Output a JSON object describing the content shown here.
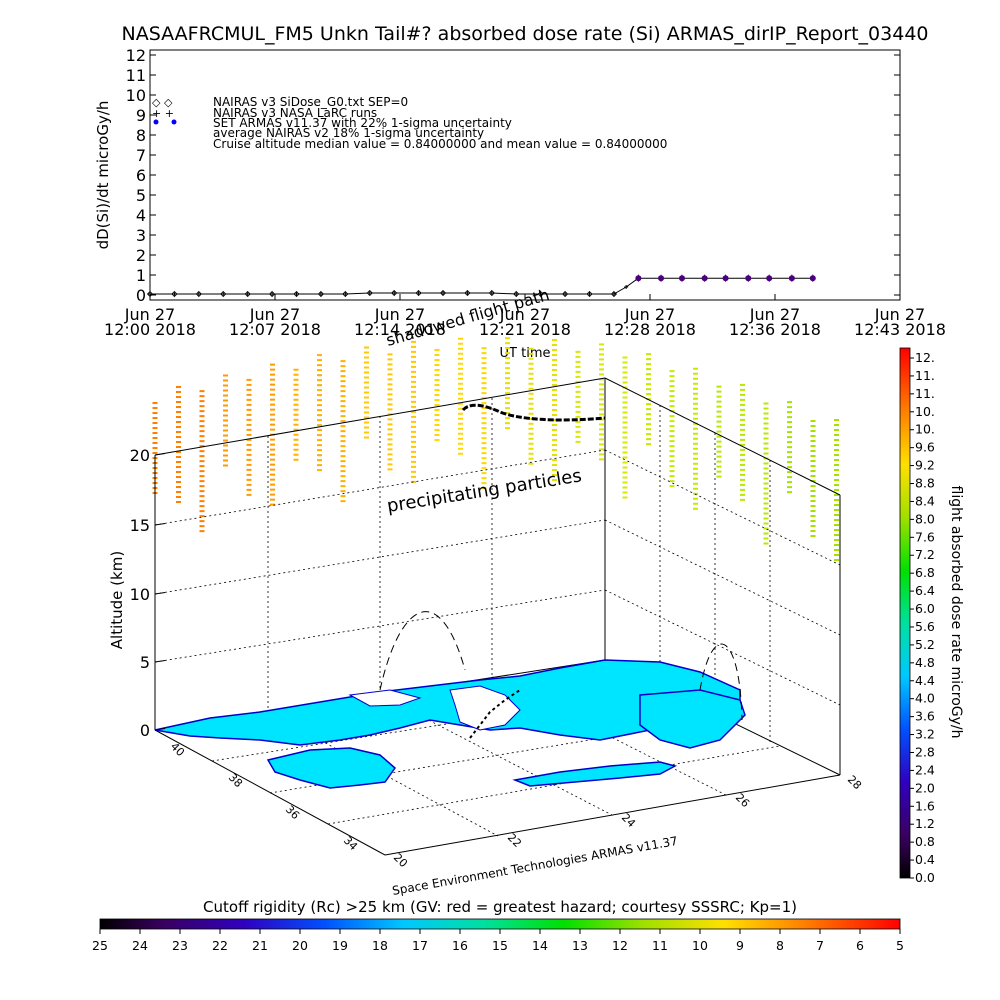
{
  "title": "NASAAFRCMUL_FM5 Unkn Tail#? absorbed dose rate (Si) ARMAS_dirIP_Report_03440",
  "top_chart": {
    "ylabel": "dD(Si)/dt microGy/h",
    "xlabel": "UT time",
    "yticks": [
      "0",
      "1",
      "2",
      "3",
      "4",
      "5",
      "6",
      "7",
      "8",
      "9",
      "10",
      "11",
      "12"
    ],
    "xticks": [
      {
        "line1": "Jun 27",
        "line2": "12:00 2018"
      },
      {
        "line1": "Jun 27",
        "line2": "12:07 2018"
      },
      {
        "line1": "Jun 27",
        "line2": "12:14 2018"
      },
      {
        "line1": "Jun 27",
        "line2": "12:21 2018"
      },
      {
        "line1": "Jun 27",
        "line2": "12:28 2018"
      },
      {
        "line1": "Jun 27",
        "line2": "12:36 2018"
      },
      {
        "line1": "Jun 27",
        "line2": "12:43 2018"
      }
    ],
    "legend": [
      {
        "symbol": "◇ ◇",
        "text": "NAIRAS v3 SiDose_G0.txt SEP=0"
      },
      {
        "symbol": "+ +",
        "text": "NAIRAS v3 NASA LaRC runs"
      },
      {
        "symbol": "● ●",
        "text": "SET ARMAS v11.37 with 22% 1-sigma uncertainty"
      },
      {
        "symbol": "",
        "text": "average NAIRAS v2 18% 1-sigma uncertainty"
      },
      {
        "symbol": "",
        "text": "Cruise altitude median value = 0.84000000 and mean value = 0.84000000"
      }
    ]
  },
  "chart_data": [
    {
      "type": "scatter",
      "title": "NASAAFRCMUL_FM5 Unkn Tail#? absorbed dose rate (Si) ARMAS_dirIP_Report_03440",
      "xlabel": "UT time",
      "ylabel": "dD(Si)/dt microGy/h",
      "xlim": [
        0,
        43
      ],
      "ylim": [
        0,
        12
      ],
      "x_units": "minutes after Jun 27 12:00 2018",
      "series": [
        {
          "name": "NAIRAS v3 SiDose_G0.txt SEP=0",
          "x": [
            0,
            1.4,
            2.8,
            4.2,
            5.6,
            7,
            8.4,
            9.8,
            11.2,
            12.6,
            14,
            15.4,
            16.8,
            18.2,
            19.6,
            21,
            22.4,
            23.8,
            25.2,
            26.6
          ],
          "y": [
            0.05,
            0.05,
            0.05,
            0.05,
            0.05,
            0.05,
            0.05,
            0.05,
            0.05,
            0.1,
            0.1,
            0.1,
            0.1,
            0.1,
            0.1,
            0.05,
            0.05,
            0.05,
            0.05,
            0.05
          ]
        },
        {
          "name": "NAIRAS v3 NASA LaRC runs",
          "x": [
            0,
            1.4,
            2.8,
            4.2,
            5.6,
            7,
            8.4,
            9.8,
            11.2,
            12.6,
            14,
            15.4,
            16.8,
            18.2,
            19.6,
            21,
            22.4,
            23.8,
            25.2,
            26.6,
            27.3
          ],
          "y": [
            0.05,
            0.05,
            0.05,
            0.05,
            0.05,
            0.05,
            0.05,
            0.05,
            0.05,
            0.1,
            0.1,
            0.1,
            0.1,
            0.1,
            0.1,
            0.05,
            0.05,
            0.05,
            0.05,
            0.05,
            0.4
          ]
        },
        {
          "name": "SET ARMAS v11.37 with 22% 1-sigma uncertainty",
          "x": [
            28.0,
            29.3,
            30.5,
            31.8,
            33.0,
            34.3,
            35.5,
            36.8,
            38.0
          ],
          "y": [
            0.84,
            0.84,
            0.84,
            0.84,
            0.84,
            0.84,
            0.84,
            0.84,
            0.84
          ],
          "error": 0.18
        }
      ]
    },
    {
      "type": "heatmap",
      "title": "",
      "description_labels": [
        "precipitating particles",
        "shadowed flight path"
      ],
      "zlabel": "Altitude (km)",
      "zticks": [
        0,
        5,
        10,
        15,
        20
      ],
      "lat_ticks": [
        34,
        36,
        38,
        40
      ],
      "lon_ticks": [
        20,
        22,
        24,
        26,
        28
      ]
    }
  ],
  "map3d": {
    "zlabel": "Altitude (km)",
    "zticks": [
      "0",
      "5",
      "10",
      "15",
      "20"
    ],
    "lat_ticks": [
      "34",
      "36",
      "38",
      "40"
    ],
    "lon_ticks": [
      "20",
      "22",
      "24",
      "26",
      "28"
    ],
    "label_precip": "precipitating particles",
    "label_shadow": "shadowed flight path",
    "credit": "Space Environment Technologies ARMAS v11.37"
  },
  "colorbar_right": {
    "label": "flight absorbed dose rate microGy/h",
    "ticks": [
      "12.",
      "11.",
      "11.",
      "10.",
      "10.",
      "9.6",
      "9.2",
      "8.8",
      "8.4",
      "8.0",
      "7.6",
      "7.2",
      "6.8",
      "6.4",
      "6.0",
      "5.6",
      "5.2",
      "4.8",
      "4.4",
      "4.0",
      "3.6",
      "3.2",
      "2.8",
      "2.4",
      "2.0",
      "1.6",
      "1.2",
      "0.8",
      "0.4",
      "0.0"
    ]
  },
  "colorbar_bottom": {
    "label": "Cutoff rigidity (Rc) >25 km (GV: red = greatest hazard; courtesy SSSRC; Kp=1)",
    "ticks": [
      "25",
      "24",
      "23",
      "22",
      "21",
      "20",
      "19",
      "18",
      "17",
      "16",
      "15",
      "14",
      "13",
      "12",
      "11",
      "10",
      "9",
      "8",
      "7",
      "6",
      "5"
    ]
  },
  "colors": {
    "armas_point": "#4b0082",
    "land": "#00e5ff",
    "coast": "#0000cc"
  }
}
